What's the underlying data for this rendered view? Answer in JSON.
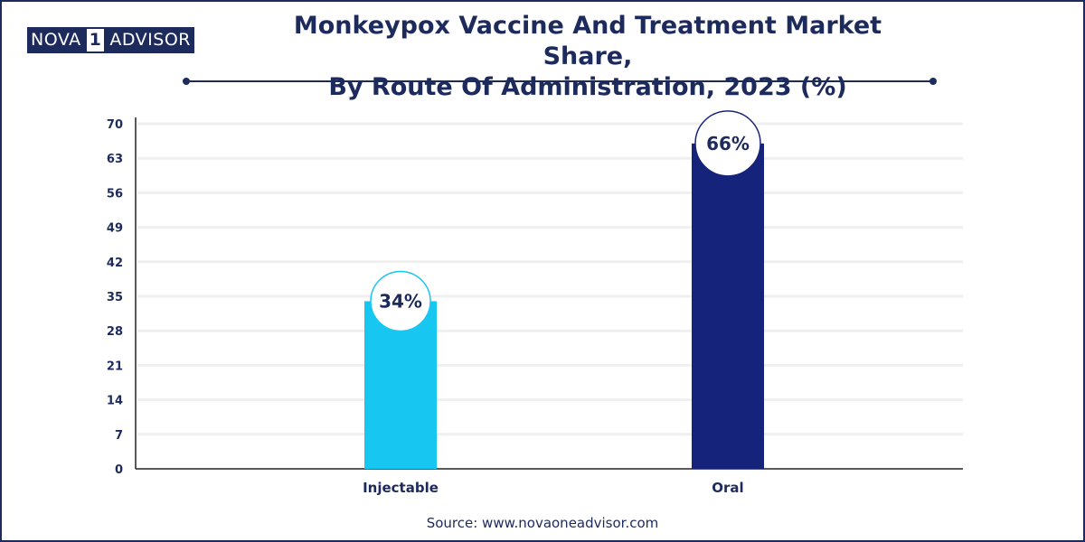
{
  "header": {
    "logo_left": "NOVA",
    "logo_mid": "1",
    "logo_right": "ADVISOR",
    "title_line1": "Monkeypox Vaccine And Treatment Market Share,",
    "title_line2": "By Route Of Administration, 2023 (%)"
  },
  "footer": {
    "source": "Source: www.novaoneadvisor.com"
  },
  "colors": {
    "injectable": "#18c6f2",
    "oral": "#15247a",
    "text": "#1d2a5c",
    "grid": "#efefef"
  },
  "chart_data": {
    "type": "bar",
    "categories": [
      "Injectable",
      "Oral"
    ],
    "values": [
      34,
      66
    ],
    "value_labels": [
      "34%",
      "66%"
    ],
    "title": "Monkeypox Vaccine And Treatment Market Share, By Route Of Administration, 2023 (%)",
    "xlabel": "",
    "ylabel": "",
    "ylim": [
      0,
      70
    ],
    "yticks": [
      0,
      7,
      14,
      21,
      28,
      35,
      42,
      49,
      56,
      63,
      70
    ],
    "grid": true,
    "legend": "none"
  }
}
